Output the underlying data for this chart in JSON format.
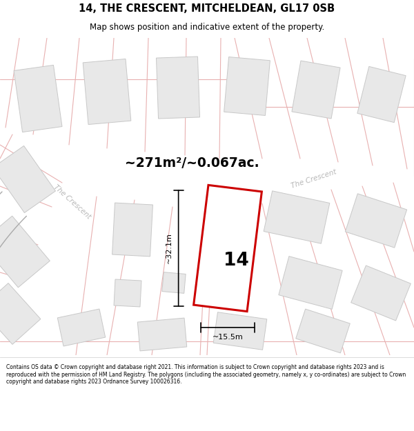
{
  "title": "14, THE CRESCENT, MITCHELDEAN, GL17 0SB",
  "subtitle": "Map shows position and indicative extent of the property.",
  "area_label": "~271m²/~0.067ac.",
  "number_label": "14",
  "dim_width": "~15.5m",
  "dim_height": "~32.1m",
  "road_label_left": "The Crescent",
  "road_label_right": "The Crescent",
  "footer": "Contains OS data © Crown copyright and database right 2021. This information is subject to Crown copyright and database rights 2023 and is reproduced with the permission of HM Land Registry. The polygons (including the associated geometry, namely x, y co-ordinates) are subject to Crown copyright and database rights 2023 Ordnance Survey 100026316.",
  "bg_color": "#ffffff",
  "building_color": "#e8e8e8",
  "building_edge": "#c8c8c8",
  "road_line_color": "#e8b0b0",
  "road_curve_color": "#b0b0b0",
  "plot_color": "#cc0000",
  "text_color": "#000000",
  "road_text_color": "#b8b8b8"
}
